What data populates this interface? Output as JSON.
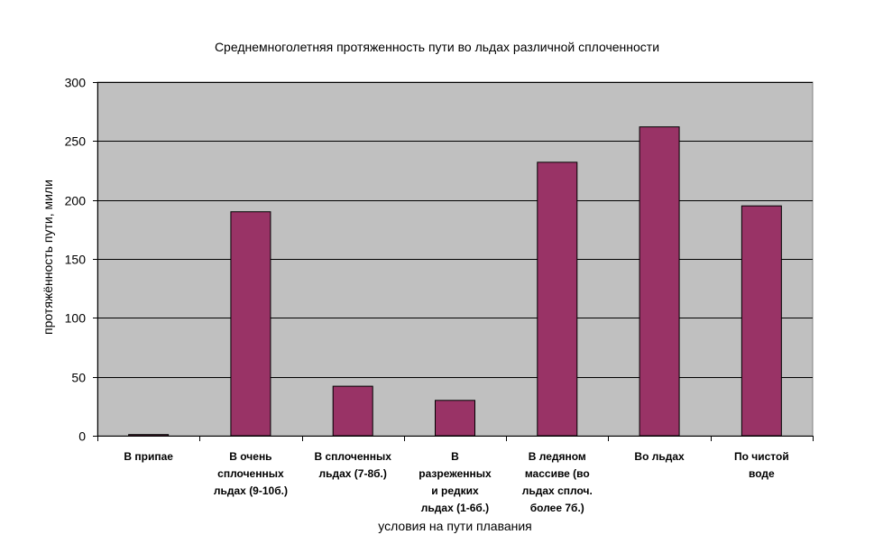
{
  "chart_data": {
    "type": "bar",
    "title": "Среднемноголетняя протяженность пути во льдах различной сплоченности",
    "xlabel": "условия на пути плавания",
    "ylabel": "протяжённость пути, мили",
    "ylim": [
      0,
      300
    ],
    "yticks": [
      "0",
      "50",
      "100",
      "150",
      "200",
      "250",
      "300"
    ],
    "categories": [
      "В припае",
      "В очень сплоченных льдах (9-10б.)",
      "В сплоченных льдах (7-8б.)",
      "В разреженных и редких льдах (1-6б.)",
      "В ледяном массиве (во льдах сплоч. более 7б.)",
      "Во льдах",
      "По чистой воде"
    ],
    "category_lines": [
      [
        "В припае"
      ],
      [
        "В очень",
        "сплоченных",
        "льдах (9-10б.)"
      ],
      [
        "В сплоченных",
        "льдах (7-8б.)"
      ],
      [
        "В",
        "разреженных",
        "и редких",
        "льдах (1-6б.)"
      ],
      [
        "В ледяном",
        "массиве (во",
        "льдах сплоч.",
        "более 7б.)"
      ],
      [
        "Во льдах"
      ],
      [
        "По чистой",
        "воде"
      ]
    ],
    "values": [
      1,
      190,
      42,
      30,
      232,
      262,
      195
    ],
    "grid": true,
    "legend": "none",
    "colors": {
      "plot_background": "#c0c0c0",
      "bar_fill": "#993366",
      "bar_stroke": "#000000",
      "gridline": "#000000"
    }
  }
}
